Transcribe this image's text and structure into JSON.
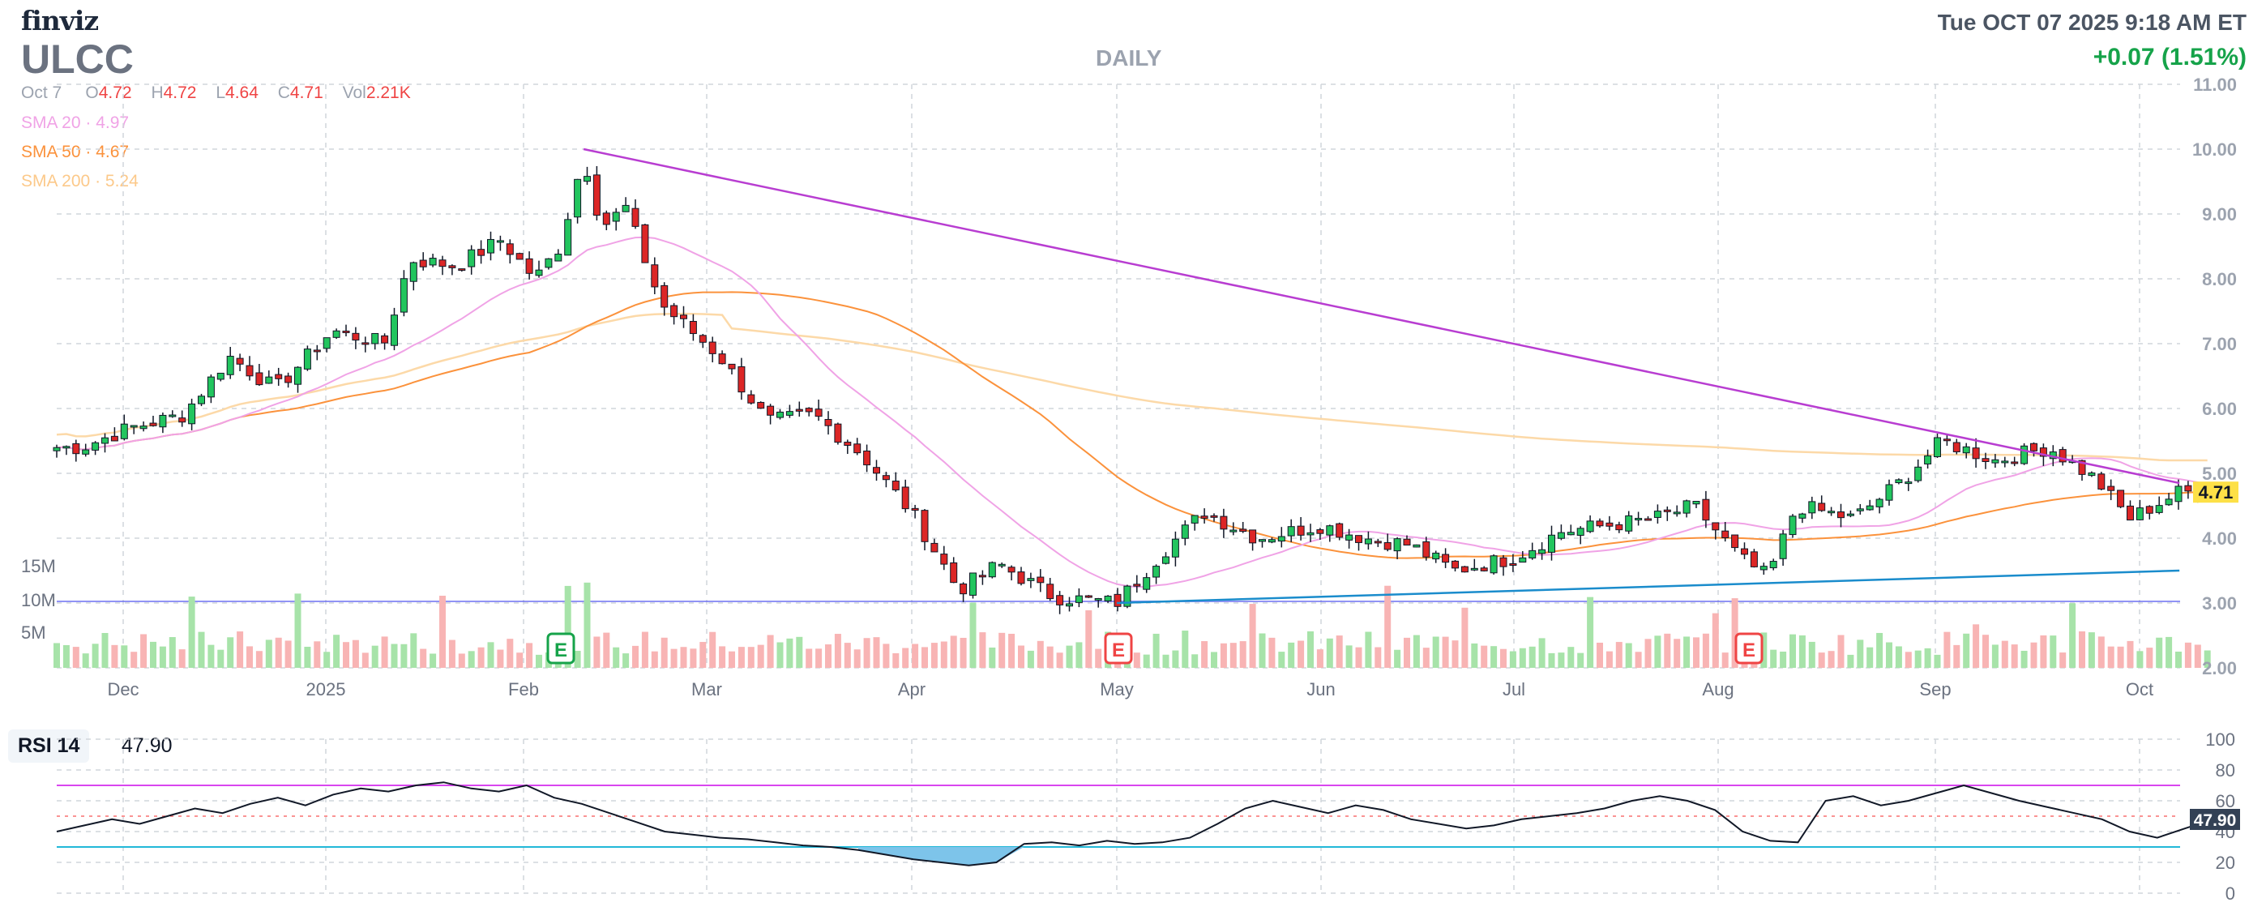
{
  "header": {
    "logo": "finviz",
    "ticker": "ULCC",
    "interval": "DAILY",
    "datetime": "Tue OCT 07 2025 9:18 AM ET",
    "change": "+0.07 (1.51%)"
  },
  "ohlc": {
    "date": "Oct 7",
    "open_label": "O",
    "open": "4.72",
    "high_label": "H",
    "high": "4.72",
    "low_label": "L",
    "low": "4.64",
    "close_label": "C",
    "close": "4.71",
    "vol_label": "Vol",
    "vol": "2.21K"
  },
  "sma": [
    {
      "label": "SMA 20",
      "value": "4.97",
      "color": "#f0a3e6"
    },
    {
      "label": "SMA 50",
      "value": "4.67",
      "color": "#fb923c"
    },
    {
      "label": "SMA 200",
      "value": "5.24",
      "color": "#fcd9a8"
    }
  ],
  "rsi": {
    "label": "RSI 14",
    "value": "47.90"
  },
  "colors": {
    "up": "#22c55e",
    "down": "#dc2626",
    "vol_up": "#a7e3a9",
    "vol_down": "#f8b4b4",
    "trend_down": "#b83dd1",
    "trend_up": "#1a8ccc",
    "rsi_upper": "#d946ef",
    "rsi_lower": "#22b8d8",
    "rsi_fill": "#7dc4ea",
    "last_price_bg": "#fde047"
  },
  "chart_data": [
    {
      "type": "candlestick",
      "title": "DAILY",
      "x_tick_labels": [
        "Dec",
        "2025",
        "Feb",
        "Mar",
        "Apr",
        "May",
        "Jun",
        "Jul",
        "Aug",
        "Sep",
        "Oct"
      ],
      "y_tick_labels": [
        "11.00",
        "10.00",
        "9.00",
        "8.00",
        "7.00",
        "6.00",
        "5.00",
        "4.00",
        "3.00",
        "2.00"
      ],
      "ylim": [
        2,
        11
      ],
      "last_price_label": "4.71",
      "volume_axis_labels": [
        "15M",
        "10M",
        "5M"
      ],
      "earnings_markers": [
        {
          "label": "E",
          "date": "Feb",
          "color": "#16a34a"
        },
        {
          "label": "E",
          "date": "Apr/May",
          "color": "#ef4444"
        },
        {
          "label": "E",
          "date": "Aug",
          "color": "#ef4444"
        }
      ],
      "series": [
        {
          "name": "SMA 20",
          "value": 4.97
        },
        {
          "name": "SMA 50",
          "value": 4.67
        },
        {
          "name": "SMA 200",
          "value": 5.24
        }
      ],
      "close_path": [
        [
          "Nov 25",
          5.4
        ],
        [
          "Dec 2",
          5.7
        ],
        [
          "Dec 10",
          5.9
        ],
        [
          "Dec 17",
          6.8
        ],
        [
          "Dec 24",
          6.3
        ],
        [
          "Jan 2",
          7.2
        ],
        [
          "Jan 10",
          7.0
        ],
        [
          "Jan 14",
          8.3
        ],
        [
          "Jan 21",
          8.2
        ],
        [
          "Jan 28",
          8.6
        ],
        [
          "Feb 3",
          8.0
        ],
        [
          "Feb 7",
          8.5
        ],
        [
          "Feb 11",
          9.9
        ],
        [
          "Feb 14",
          8.8
        ],
        [
          "Feb 18",
          9.1
        ],
        [
          "Feb 24",
          7.6
        ],
        [
          "Mar 3",
          6.8
        ],
        [
          "Mar 10",
          5.8
        ],
        [
          "Mar 17",
          5.9
        ],
        [
          "Mar 24",
          5.3
        ],
        [
          "Apr 1",
          4.4
        ],
        [
          "Apr 8",
          3.2
        ],
        [
          "Apr 14",
          3.6
        ],
        [
          "Apr 22",
          3.1
        ],
        [
          "May 1",
          3.0
        ],
        [
          "May 8",
          3.8
        ],
        [
          "May 14",
          4.4
        ],
        [
          "May 22",
          4.0
        ],
        [
          "Jun 1",
          4.2
        ],
        [
          "Jun 8",
          4.0
        ],
        [
          "Jun 15",
          3.9
        ],
        [
          "Jun 22",
          3.5
        ],
        [
          "Jul 1",
          3.7
        ],
        [
          "Jul 8",
          4.1
        ],
        [
          "Jul 15",
          4.2
        ],
        [
          "Jul 22",
          4.3
        ],
        [
          "Jul 28",
          4.5
        ],
        [
          "Aug 4",
          3.7
        ],
        [
          "Aug 8",
          3.4
        ],
        [
          "Aug 12",
          4.5
        ],
        [
          "Aug 20",
          4.3
        ],
        [
          "Aug 27",
          4.9
        ],
        [
          "Sep 2",
          5.5
        ],
        [
          "Sep 10",
          5.2
        ],
        [
          "Sep 18",
          5.4
        ],
        [
          "Sep 25",
          4.9
        ],
        [
          "Sep 30",
          4.3
        ],
        [
          "Oct 7",
          4.71
        ]
      ],
      "trendlines": [
        {
          "name": "downtrend",
          "from": [
            "Feb 11",
            10.0
          ],
          "to": [
            "Oct 7",
            4.85
          ]
        },
        {
          "name": "uptrend",
          "from": [
            "May 1",
            3.0
          ],
          "to": [
            "Oct 7",
            3.5
          ]
        }
      ]
    },
    {
      "type": "line",
      "title": "RSI 14",
      "y_tick_labels": [
        "100",
        "80",
        "60",
        "40",
        "20",
        "0"
      ],
      "ylim": [
        0,
        100
      ],
      "overbought": 70,
      "oversold": 30,
      "last_value_label": "47.90",
      "values": [
        40,
        44,
        48,
        45,
        50,
        55,
        52,
        58,
        62,
        57,
        64,
        68,
        66,
        70,
        72,
        68,
        66,
        70,
        62,
        58,
        52,
        46,
        40,
        38,
        36,
        35,
        33,
        31,
        30,
        28,
        25,
        22,
        20,
        18,
        20,
        32,
        33,
        31,
        34,
        32,
        33,
        36,
        45,
        55,
        60,
        56,
        52,
        57,
        54,
        48,
        45,
        42,
        44,
        48,
        50,
        52,
        55,
        60,
        63,
        60,
        54,
        40,
        34,
        33,
        60,
        63,
        57,
        60,
        65,
        70,
        65,
        60,
        56,
        52,
        48,
        40,
        36,
        42,
        47.9
      ]
    }
  ]
}
